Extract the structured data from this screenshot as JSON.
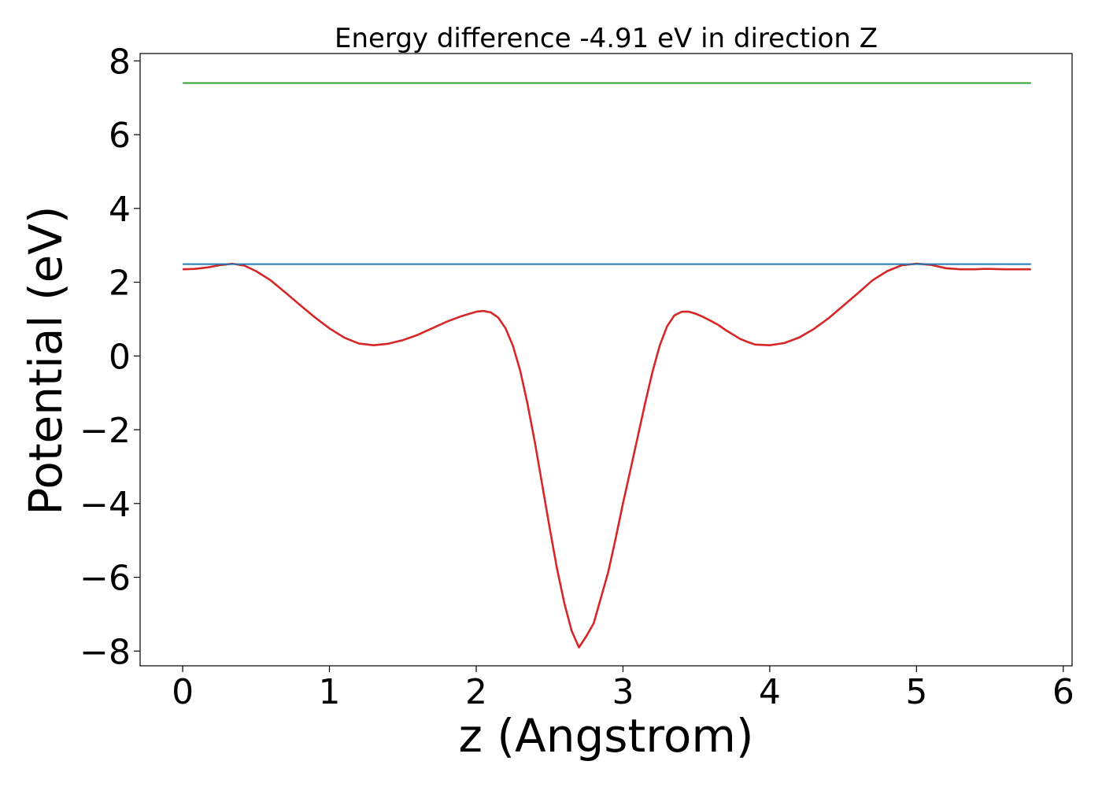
{
  "chart_data": {
    "type": "line",
    "title": "Energy difference -4.91 eV in direction Z",
    "xlabel": "z (Angstrom)",
    "ylabel": "Potential (eV)",
    "xlim": [
      -0.29,
      6.06
    ],
    "ylim": [
      -8.4,
      8.2
    ],
    "x_ticks": [
      0,
      1,
      2,
      3,
      4,
      5,
      6
    ],
    "x_tick_labels": [
      "0",
      "1",
      "2",
      "3",
      "4",
      "5",
      "6"
    ],
    "y_ticks": [
      -8,
      -6,
      -4,
      -2,
      0,
      2,
      4,
      6,
      8
    ],
    "y_tick_labels": [
      "−8",
      "−6",
      "−4",
      "−2",
      "0",
      "2",
      "4",
      "6",
      "8"
    ],
    "grid": false,
    "legend": "none",
    "series": [
      {
        "color": "#d62728",
        "x": [
          0.0,
          0.08,
          0.17,
          0.25,
          0.34,
          0.42,
          0.5,
          0.6,
          0.7,
          0.8,
          0.9,
          1.0,
          1.1,
          1.2,
          1.3,
          1.4,
          1.5,
          1.6,
          1.7,
          1.8,
          1.9,
          2.0,
          2.05,
          2.1,
          2.15,
          2.2,
          2.25,
          2.3,
          2.35,
          2.4,
          2.45,
          2.5,
          2.55,
          2.6,
          2.65,
          2.7,
          2.75,
          2.8,
          2.85,
          2.9,
          2.95,
          3.0,
          3.05,
          3.1,
          3.15,
          3.2,
          3.25,
          3.3,
          3.35,
          3.4,
          3.45,
          3.5,
          3.55,
          3.6,
          3.65,
          3.7,
          3.75,
          3.8,
          3.85,
          3.9,
          4.0,
          4.1,
          4.2,
          4.3,
          4.4,
          4.5,
          4.6,
          4.7,
          4.8,
          4.9,
          5.0,
          5.1,
          5.2,
          5.3,
          5.4,
          5.45,
          5.5,
          5.6,
          5.7,
          5.78
        ],
        "y": [
          2.35,
          2.36,
          2.4,
          2.46,
          2.5,
          2.45,
          2.3,
          2.05,
          1.72,
          1.38,
          1.05,
          0.75,
          0.5,
          0.34,
          0.29,
          0.33,
          0.43,
          0.57,
          0.75,
          0.93,
          1.08,
          1.2,
          1.22,
          1.18,
          1.04,
          0.75,
          0.28,
          -0.4,
          -1.3,
          -2.35,
          -3.5,
          -4.65,
          -5.75,
          -6.7,
          -7.45,
          -7.9,
          -7.6,
          -7.25,
          -6.55,
          -5.85,
          -4.95,
          -4.0,
          -3.1,
          -2.2,
          -1.3,
          -0.45,
          0.28,
          0.8,
          1.1,
          1.2,
          1.2,
          1.14,
          1.05,
          0.95,
          0.84,
          0.7,
          0.58,
          0.46,
          0.38,
          0.31,
          0.29,
          0.35,
          0.5,
          0.73,
          1.02,
          1.36,
          1.7,
          2.05,
          2.3,
          2.46,
          2.5,
          2.47,
          2.38,
          2.35,
          2.35,
          2.36,
          2.36,
          2.35,
          2.35,
          2.35
        ]
      },
      {
        "color": "#1f77b4",
        "x": [
          0.0,
          5.78
        ],
        "y": [
          2.49,
          2.49
        ]
      },
      {
        "color": "#2ca02c",
        "x": [
          0.0,
          5.78
        ],
        "y": [
          7.4,
          7.4
        ]
      }
    ]
  }
}
